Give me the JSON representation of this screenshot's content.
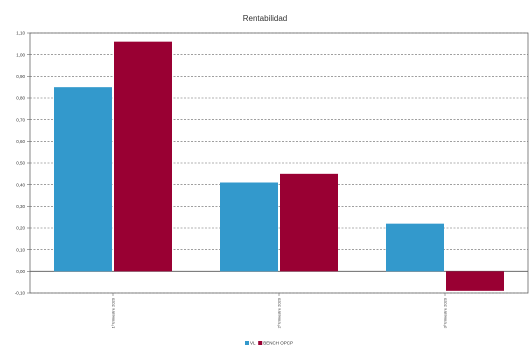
{
  "chart_data": {
    "type": "bar",
    "title": "Rentabilidad",
    "xlabel": "",
    "ylabel": "",
    "categories": [
      "1º trimestre 2020",
      "2º trimestre 2020",
      "3º trimestre 2020"
    ],
    "series": [
      {
        "name": "VL",
        "color": "#3399cc",
        "values": [
          0.85,
          0.41,
          0.22
        ]
      },
      {
        "name": "BENCH OPCP",
        "color": "#990033",
        "values": [
          1.06,
          0.45,
          -0.09
        ]
      }
    ],
    "ylim": [
      -0.1,
      1.1
    ],
    "yticks": [
      -0.1,
      0.0,
      0.1,
      0.2,
      0.3,
      0.4,
      0.5,
      0.6,
      0.7,
      0.8,
      0.9,
      1.0,
      1.1
    ],
    "ytick_labels": [
      "-0,10",
      "0,00",
      "0,10",
      "0,20",
      "0,30",
      "0,40",
      "0,50",
      "0,60",
      "0,70",
      "0,80",
      "0,90",
      "1,00",
      "1,10"
    ],
    "grid": true,
    "legend": "bottom-center"
  }
}
